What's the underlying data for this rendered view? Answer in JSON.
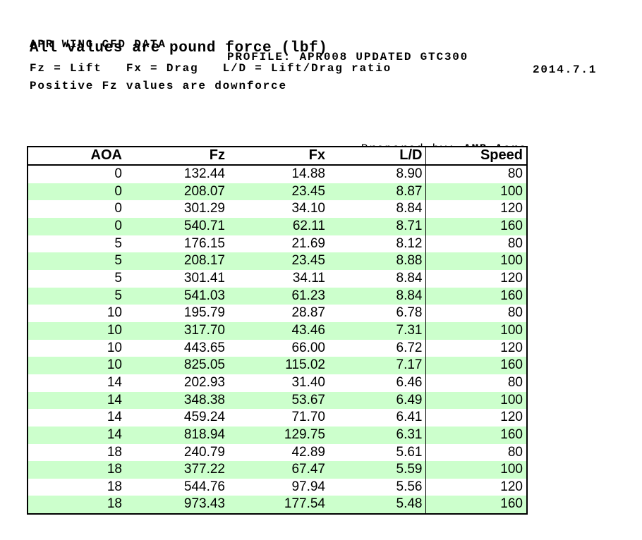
{
  "header": {
    "title": "APR WING CFD DATA",
    "profile": "PROFILE: APR008 UPDATED GTC300",
    "date": "2014.7.1",
    "subtitle": "All values are pound force (lbf)",
    "legend": "Fz = Lift   Fx = Drag   L/D = Lift/Drag ratio",
    "note": "Positive Fz values are downforce"
  },
  "prepared_by": {
    "label": "Prepared by: ",
    "value": "AMB Aero"
  },
  "table": {
    "columns": [
      "AOA",
      "Fz",
      "Fx",
      "L/D",
      "Speed"
    ],
    "rows": [
      [
        "0",
        "132.44",
        "14.88",
        "8.90",
        "80"
      ],
      [
        "0",
        "208.07",
        "23.45",
        "8.87",
        "100"
      ],
      [
        "0",
        "301.29",
        "34.10",
        "8.84",
        "120"
      ],
      [
        "0",
        "540.71",
        "62.11",
        "8.71",
        "160"
      ],
      [
        "5",
        "176.15",
        "21.69",
        "8.12",
        "80"
      ],
      [
        "5",
        "208.17",
        "23.45",
        "8.88",
        "100"
      ],
      [
        "5",
        "301.41",
        "34.11",
        "8.84",
        "120"
      ],
      [
        "5",
        "541.03",
        "61.23",
        "8.84",
        "160"
      ],
      [
        "10",
        "195.79",
        "28.87",
        "6.78",
        "80"
      ],
      [
        "10",
        "317.70",
        "43.46",
        "7.31",
        "100"
      ],
      [
        "10",
        "443.65",
        "66.00",
        "6.72",
        "120"
      ],
      [
        "10",
        "825.05",
        "115.02",
        "7.17",
        "160"
      ],
      [
        "14",
        "202.93",
        "31.40",
        "6.46",
        "80"
      ],
      [
        "14",
        "348.38",
        "53.67",
        "6.49",
        "100"
      ],
      [
        "14",
        "459.24",
        "71.70",
        "6.41",
        "120"
      ],
      [
        "14",
        "818.94",
        "129.75",
        "6.31",
        "160"
      ],
      [
        "18",
        "240.79",
        "42.89",
        "5.61",
        "80"
      ],
      [
        "18",
        "377.22",
        "67.47",
        "5.59",
        "100"
      ],
      [
        "18",
        "544.76",
        "97.94",
        "5.56",
        "120"
      ],
      [
        "18",
        "973.43",
        "177.54",
        "5.48",
        "160"
      ]
    ]
  },
  "colors": {
    "row_highlight": "#ccffcc",
    "border": "#000000",
    "text": "#000000",
    "background": "#ffffff"
  }
}
